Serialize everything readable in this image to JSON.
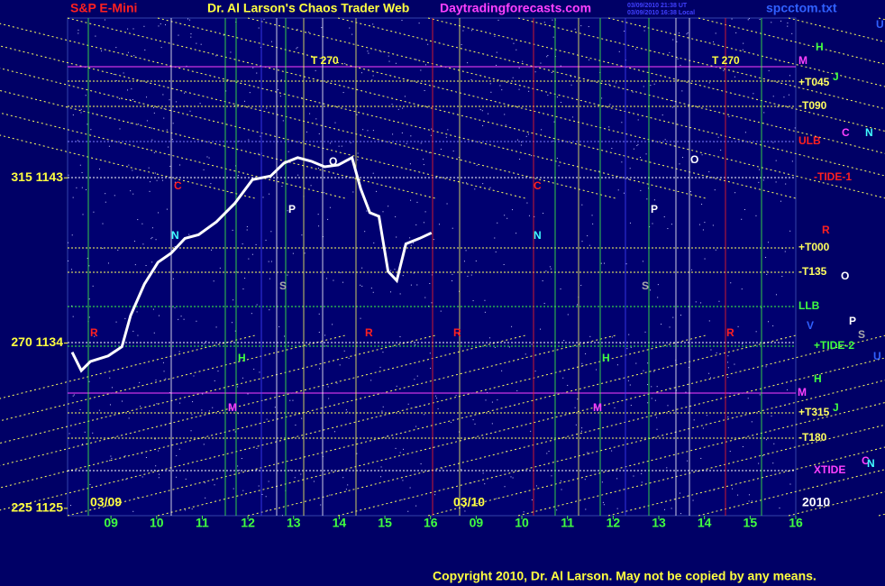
{
  "chart_data": {
    "type": "line",
    "symbol": "S&P E-Mini",
    "title": "Dr. Al Larson's Chaos Trader Web",
    "site": "Daytradingforecasts.com",
    "file": "spcctom.txt",
    "timestamps": [
      "03/09/2010 21:38 UT",
      "03/09/2010 16:38 Local"
    ],
    "x": [
      -0.85,
      -0.65,
      -0.45,
      -0.06,
      0.24,
      0.43,
      0.73,
      1.03,
      1.32,
      1.62,
      1.92,
      2.31,
      2.71,
      3.1,
      3.5,
      3.79,
      4.09,
      4.39,
      4.68,
      4.98,
      5.28,
      5.47,
      5.67,
      5.87,
      6.07,
      6.26,
      6.46,
      6.76,
      7.02
    ],
    "series": [
      {
        "color": "#ffffff",
        "values": [
          1133.5,
          1132.5,
          1133.0,
          1133.3,
          1133.8,
          1135.5,
          1137.2,
          1138.4,
          1138.9,
          1139.7,
          1139.9,
          1140.6,
          1141.6,
          1142.9,
          1143.1,
          1143.8,
          1144.1,
          1143.9,
          1143.6,
          1143.7,
          1144.1,
          1142.4,
          1141.1,
          1140.9,
          1137.9,
          1137.4,
          1139.4,
          1139.7,
          1140.0
        ]
      }
    ],
    "xlim": [
      -0.95,
      15
    ],
    "xticks": [
      {
        "value": 0,
        "label": "09"
      },
      {
        "value": 1,
        "label": "10"
      },
      {
        "value": 2,
        "label": "11"
      },
      {
        "value": 3,
        "label": "12"
      },
      {
        "value": 4,
        "label": "13"
      },
      {
        "value": 5,
        "label": "14"
      },
      {
        "value": 6,
        "label": "15"
      },
      {
        "value": 7,
        "label": "16"
      },
      {
        "value": 8,
        "label": "09"
      },
      {
        "value": 9,
        "label": "10"
      },
      {
        "value": 10,
        "label": "11"
      },
      {
        "value": 11,
        "label": "12"
      },
      {
        "value": 12,
        "label": "13"
      },
      {
        "value": 13,
        "label": "14"
      },
      {
        "value": 14,
        "label": "15"
      },
      {
        "value": 15,
        "label": "16"
      }
    ],
    "ylim": [
      1124.6,
      1151.7
    ],
    "yticks": [
      {
        "value": 1143,
        "label": "315  1143"
      },
      {
        "value": 1134,
        "label": "270  1134"
      },
      {
        "value": 1125,
        "label": "225  1125"
      }
    ],
    "date_labels": [
      "03/09",
      "03/10",
      "2010"
    ],
    "right_labels": [
      "U",
      "H",
      "M",
      "+T045",
      "J",
      "-T090",
      "ULB",
      "C",
      "N",
      "-TIDE-1",
      "R",
      "+T000",
      "-T135",
      "O",
      "LLB",
      "V",
      "P",
      "S",
      "+TIDE-2",
      "U",
      "H",
      "M",
      "+T315",
      "J",
      "-T180",
      "C",
      "N",
      "XTIDE"
    ],
    "annotations": [
      "T  270",
      "T  270",
      "C",
      "N",
      "P",
      "S",
      "O",
      "O",
      "C",
      "N",
      "P",
      "S",
      "R",
      "R",
      "R",
      "R",
      "H",
      "H",
      "M",
      "M"
    ],
    "copyright": "Copyright 2010, Dr. Al Larson. May not be copied by any means."
  }
}
